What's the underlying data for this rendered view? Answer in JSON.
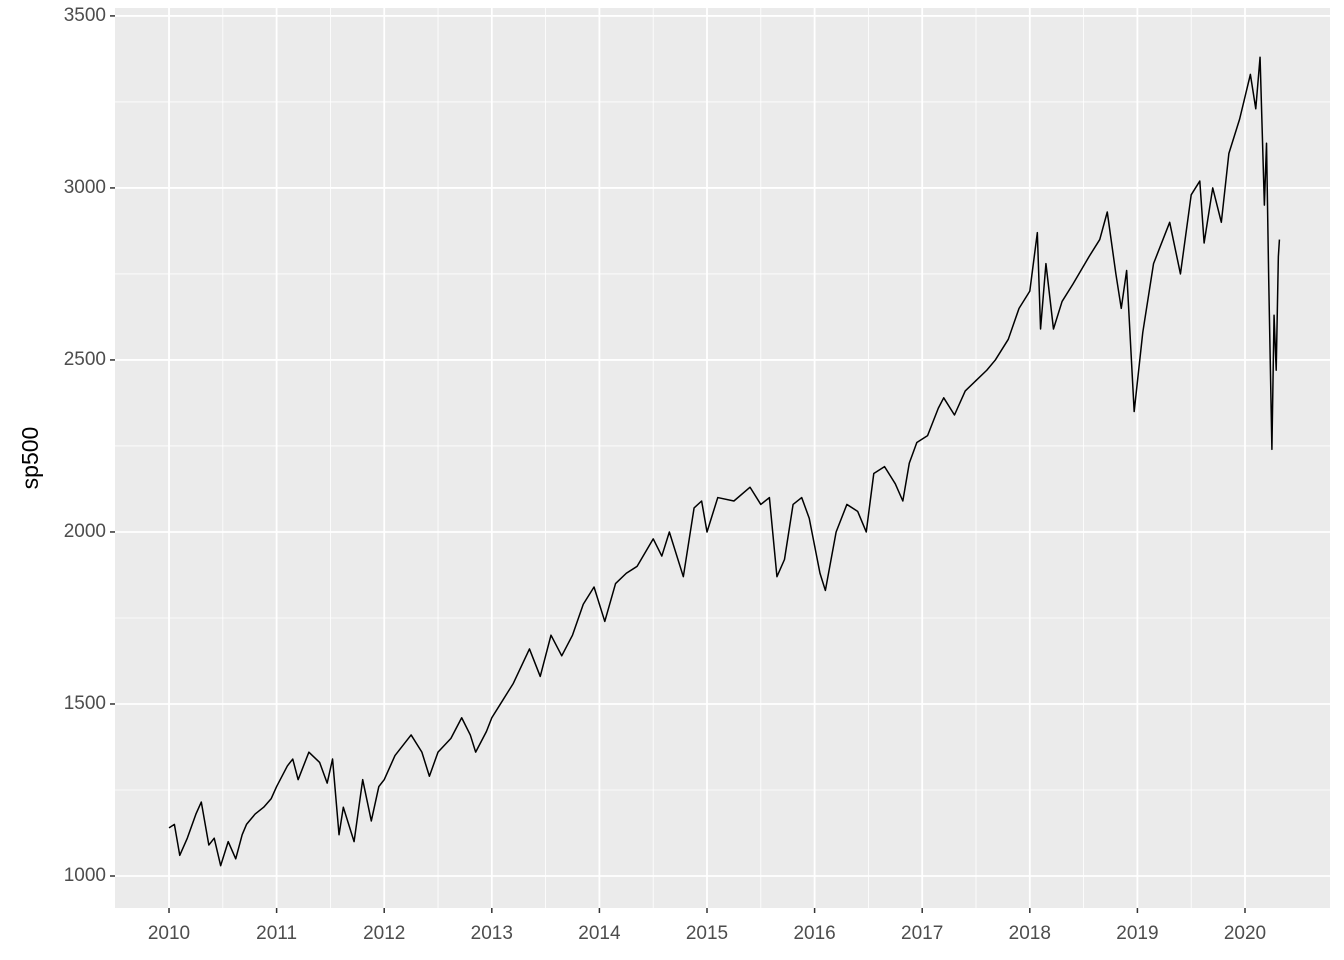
{
  "chart_data": {
    "type": "line",
    "y_label": "sp500",
    "color": "#000000",
    "grid": true,
    "x": [
      2010.0,
      2010.05,
      2010.1,
      2010.17,
      2010.25,
      2010.3,
      2010.37,
      2010.42,
      2010.48,
      2010.55,
      2010.62,
      2010.68,
      2010.72,
      2010.8,
      2010.88,
      2010.95,
      2011.0,
      2011.1,
      2011.15,
      2011.2,
      2011.3,
      2011.4,
      2011.47,
      2011.52,
      2011.58,
      2011.62,
      2011.68,
      2011.72,
      2011.8,
      2011.88,
      2011.95,
      2012.0,
      2012.1,
      2012.25,
      2012.35,
      2012.42,
      2012.5,
      2012.62,
      2012.72,
      2012.8,
      2012.85,
      2012.95,
      2013.0,
      2013.1,
      2013.2,
      2013.35,
      2013.45,
      2013.55,
      2013.65,
      2013.75,
      2013.85,
      2013.95,
      2014.05,
      2014.15,
      2014.25,
      2014.35,
      2014.5,
      2014.58,
      2014.65,
      2014.78,
      2014.88,
      2014.95,
      2015.0,
      2015.1,
      2015.25,
      2015.4,
      2015.5,
      2015.58,
      2015.65,
      2015.72,
      2015.8,
      2015.88,
      2015.95,
      2016.05,
      2016.1,
      2016.2,
      2016.3,
      2016.4,
      2016.48,
      2016.55,
      2016.65,
      2016.75,
      2016.82,
      2016.88,
      2016.95,
      2017.05,
      2017.15,
      2017.2,
      2017.3,
      2017.4,
      2017.5,
      2017.6,
      2017.68,
      2017.8,
      2017.9,
      2018.0,
      2018.07,
      2018.1,
      2018.15,
      2018.22,
      2018.3,
      2018.4,
      2018.55,
      2018.65,
      2018.72,
      2018.8,
      2018.85,
      2018.9,
      2018.97,
      2019.05,
      2019.15,
      2019.3,
      2019.4,
      2019.5,
      2019.58,
      2019.62,
      2019.7,
      2019.78,
      2019.85,
      2019.95,
      2020.05,
      2020.1,
      2020.14,
      2020.18,
      2020.2,
      2020.22,
      2020.25,
      2020.27,
      2020.29,
      2020.31,
      2020.32
    ],
    "values": [
      1140,
      1150,
      1060,
      1110,
      1180,
      1215,
      1090,
      1110,
      1030,
      1100,
      1050,
      1120,
      1150,
      1180,
      1200,
      1225,
      1260,
      1320,
      1340,
      1280,
      1360,
      1330,
      1270,
      1340,
      1120,
      1200,
      1140,
      1100,
      1280,
      1160,
      1260,
      1280,
      1350,
      1410,
      1360,
      1290,
      1360,
      1400,
      1460,
      1410,
      1360,
      1420,
      1460,
      1510,
      1560,
      1660,
      1580,
      1700,
      1640,
      1700,
      1790,
      1840,
      1740,
      1850,
      1880,
      1900,
      1980,
      1930,
      2000,
      1870,
      2070,
      2090,
      2000,
      2100,
      2090,
      2130,
      2080,
      2100,
      1870,
      1920,
      2080,
      2100,
      2040,
      1880,
      1830,
      2000,
      2080,
      2060,
      2000,
      2170,
      2190,
      2140,
      2090,
      2200,
      2260,
      2280,
      2360,
      2390,
      2340,
      2410,
      2440,
      2470,
      2500,
      2560,
      2650,
      2700,
      2870,
      2590,
      2780,
      2590,
      2670,
      2720,
      2800,
      2850,
      2930,
      2750,
      2650,
      2760,
      2350,
      2580,
      2780,
      2900,
      2750,
      2980,
      3020,
      2840,
      3000,
      2900,
      3100,
      3200,
      3330,
      3230,
      3380,
      2950,
      3130,
      2740,
      2240,
      2630,
      2470,
      2800,
      2850
    ],
    "xlim": [
      2009.498,
      2020.79
    ],
    "ylim": [
      907,
      3523
    ],
    "xticks": [
      2010,
      2011,
      2012,
      2013,
      2014,
      2015,
      2016,
      2017,
      2018,
      2019,
      2020
    ],
    "yticks": [
      1000,
      1500,
      2000,
      2500,
      3000,
      3500
    ]
  }
}
